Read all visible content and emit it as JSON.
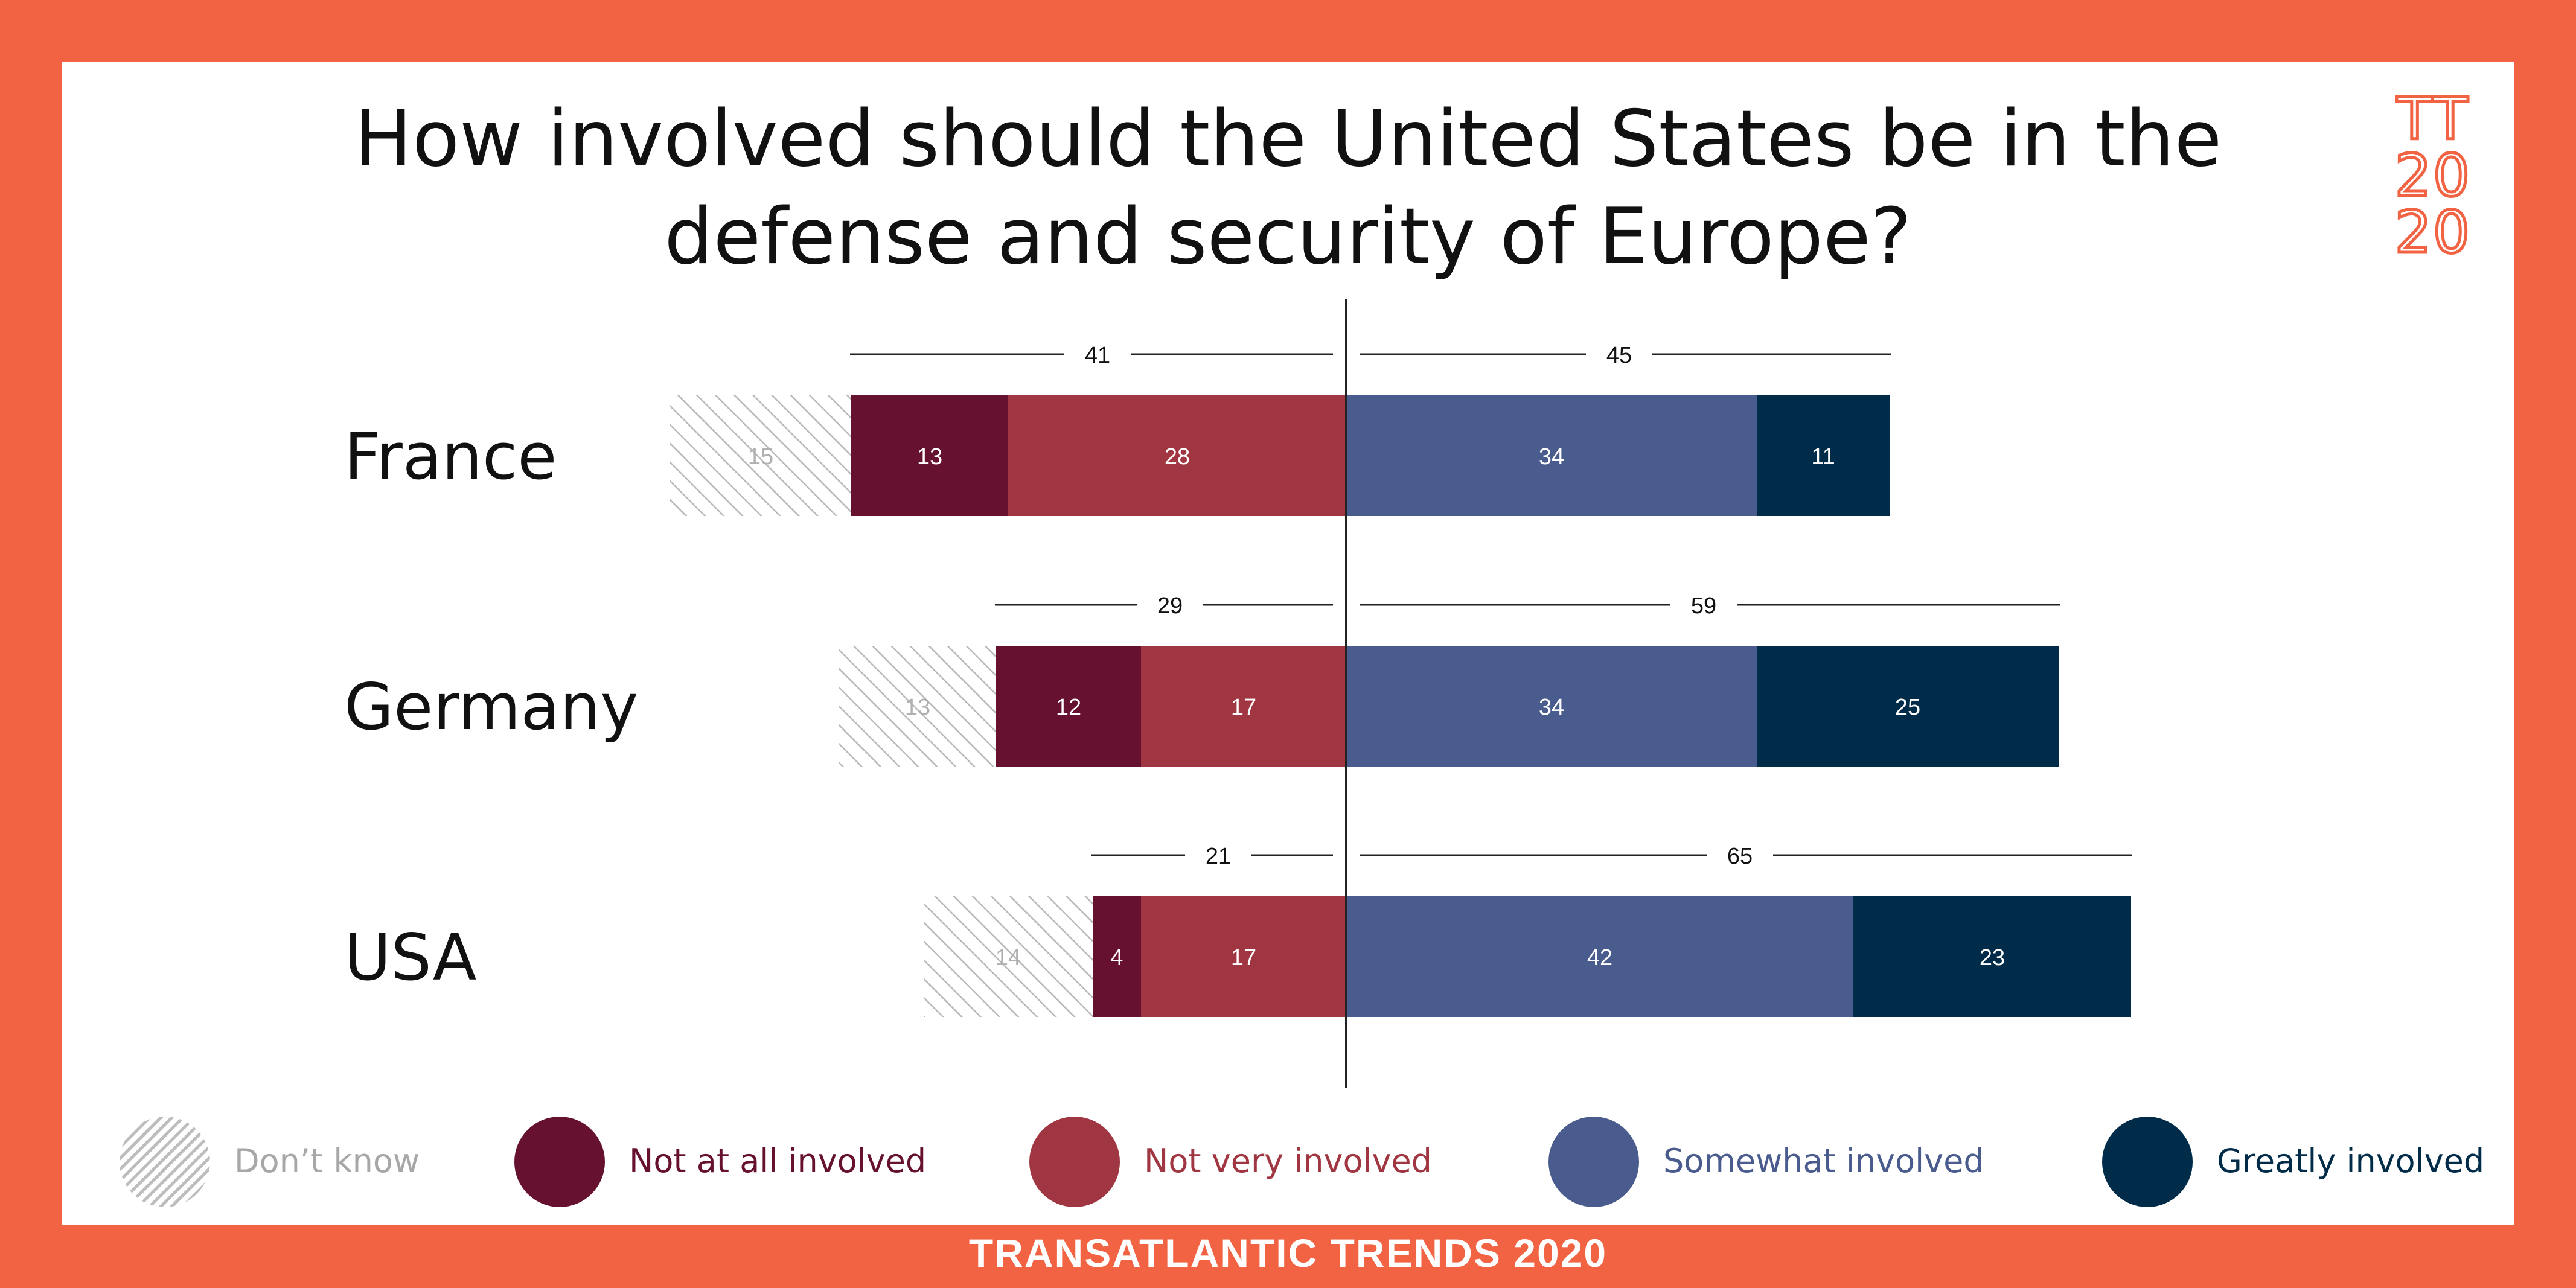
{
  "header": {
    "title_line1": "How involved should the United States be in the",
    "title_line2": "defense and security of Europe?"
  },
  "logo": {
    "line1": "TT",
    "line2": "20",
    "line3": "20"
  },
  "footer": {
    "text": "TRANSATLANTIC TRENDS 2020"
  },
  "colors": {
    "frame": "#f16342",
    "dont_know": "#a7a7a7",
    "not_at_all": "#671130",
    "not_very": "#a03641",
    "somewhat": "#4a5b8e",
    "greatly": "#002c49"
  },
  "chart_data": {
    "type": "bar",
    "orientation": "horizontal-diverging",
    "categories": [
      "France",
      "Germany",
      "USA"
    ],
    "series": [
      {
        "name": "Don’t know",
        "values": [
          15,
          13,
          14
        ],
        "pattern": "hatched"
      },
      {
        "name": "Not at all involved",
        "values": [
          13,
          12,
          4
        ]
      },
      {
        "name": "Not very involved",
        "values": [
          28,
          17,
          17
        ]
      },
      {
        "name": "Somewhat involved",
        "values": [
          34,
          34,
          42
        ]
      },
      {
        "name": "Greatly involved",
        "values": [
          11,
          25,
          23
        ]
      }
    ],
    "totals_negative": [
      41,
      29,
      21
    ],
    "totals_positive": [
      45,
      59,
      65
    ],
    "legend_position": "bottom"
  }
}
